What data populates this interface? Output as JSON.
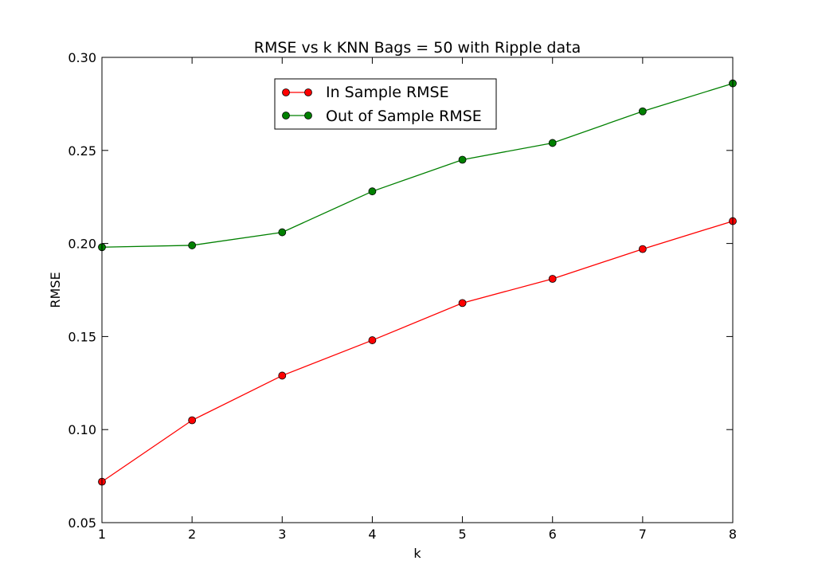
{
  "chart_data": {
    "type": "line",
    "title": "RMSE vs k KNN Bags = 50 with Ripple data",
    "xlabel": "k",
    "ylabel": "RMSE",
    "x": [
      1,
      2,
      3,
      4,
      5,
      6,
      7,
      8
    ],
    "xlim": [
      1,
      8
    ],
    "ylim": [
      0.05,
      0.3
    ],
    "xticks": [
      "1",
      "2",
      "3",
      "4",
      "5",
      "6",
      "7",
      "8"
    ],
    "yticks": [
      "0.05",
      "0.10",
      "0.15",
      "0.20",
      "0.25",
      "0.30"
    ],
    "grid": false,
    "legend_position": "upper-center",
    "series": [
      {
        "name": "In Sample RMSE",
        "color": "#ff0000",
        "marker": "circle",
        "values": [
          0.072,
          0.105,
          0.129,
          0.148,
          0.168,
          0.181,
          0.197,
          0.212
        ]
      },
      {
        "name": "Out of Sample RMSE",
        "color": "#008000",
        "marker": "circle",
        "values": [
          0.198,
          0.199,
          0.206,
          0.228,
          0.245,
          0.254,
          0.271,
          0.286
        ]
      }
    ]
  }
}
